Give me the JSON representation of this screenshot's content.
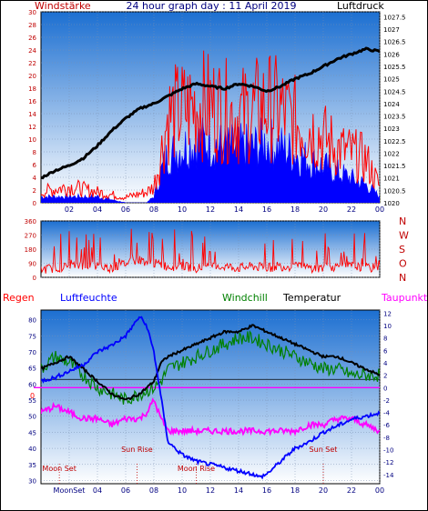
{
  "colors": {
    "wind": "#ff0000",
    "gust_bar": "#0000ff",
    "pressure": "#000000",
    "direction": "#ff0000",
    "humidity": "#0000ff",
    "windchill": "#008000",
    "temperature": "#000000",
    "dewpoint": "#ff00ff",
    "rain": "#ff0000",
    "sky_top": "#1c6fd1",
    "sky_bottom": "#ffffff",
    "axis_left": "#000080",
    "axis_right": "#000080"
  },
  "chart_data": [
    {
      "type": "line",
      "title": "24 hour graph day : 11 April 2019",
      "left_label": "Windstärke",
      "right_label": "Luftdruck",
      "x_ticks": [
        "02",
        "04",
        "06",
        "08",
        "10",
        "12",
        "14",
        "16",
        "18",
        "20",
        "22",
        "00"
      ],
      "left_ticks": [
        "0",
        "2",
        "4",
        "6",
        "8",
        "10",
        "12",
        "14",
        "16",
        "18",
        "20",
        "22",
        "24",
        "26",
        "28",
        "30"
      ],
      "right_ticks": [
        "1020",
        "1020.5",
        "1021",
        "1021.5",
        "1022",
        "1022.5",
        "1023",
        "1023.5",
        "1024",
        "1024.5",
        "1025",
        "1025.5",
        "1026",
        "1026.5",
        "1027",
        "1027.5"
      ],
      "ylim_left": [
        0,
        30
      ],
      "ylim_right": [
        1020,
        1027.7
      ],
      "series": [
        {
          "key": "pressure",
          "hours": [
            0,
            1,
            2,
            3,
            4,
            5,
            6,
            7,
            8,
            9,
            10,
            11,
            12,
            13,
            14,
            15,
            16,
            17,
            18,
            19,
            20,
            21,
            22,
            23,
            24
          ],
          "values": [
            1021,
            1021.3,
            1021.5,
            1021.8,
            1022.3,
            1022.9,
            1023.4,
            1023.8,
            1024.0,
            1024.3,
            1024.6,
            1024.8,
            1024.7,
            1024.6,
            1024.8,
            1024.7,
            1024.5,
            1024.7,
            1025.0,
            1025.2,
            1025.5,
            1025.8,
            1026.0,
            1026.2,
            1026.1
          ]
        },
        {
          "key": "wind",
          "hours": [
            0,
            2,
            4,
            6,
            7.5,
            8,
            8.5,
            9,
            10,
            11,
            12,
            13,
            14,
            15,
            16,
            17,
            18,
            19,
            20,
            21,
            22,
            23,
            24
          ],
          "values": [
            2,
            3,
            2,
            1,
            2,
            3,
            9,
            16,
            17,
            18,
            18,
            17,
            16,
            17,
            18,
            17,
            15,
            14,
            12,
            10,
            9,
            8,
            3
          ]
        },
        {
          "key": "gust",
          "hours": [
            0,
            2,
            4,
            6,
            7.5,
            8,
            8.5,
            9,
            10,
            11,
            12,
            13,
            14,
            15,
            16,
            17,
            18,
            19,
            20,
            21,
            22,
            23,
            24
          ],
          "values": [
            1,
            1,
            1,
            0,
            0,
            1,
            5,
            8,
            9,
            10,
            10,
            9,
            9,
            9,
            10,
            9,
            8,
            7,
            6,
            5,
            4,
            3,
            1
          ]
        }
      ]
    },
    {
      "type": "line",
      "title": "",
      "right_labels": [
        "N",
        "W",
        "S",
        "O",
        "N"
      ],
      "left_ticks": [
        "0",
        "90",
        "180",
        "270",
        "360"
      ],
      "ylim": [
        0,
        360
      ],
      "series": [
        {
          "key": "direction",
          "hours": [
            0,
            1,
            2,
            3,
            4,
            5,
            6,
            7,
            8,
            9,
            10,
            11,
            12,
            13,
            14,
            15,
            16,
            17,
            18,
            19,
            20,
            21,
            22,
            23,
            24
          ],
          "values": [
            50,
            60,
            70,
            80,
            70,
            60,
            90,
            110,
            90,
            70,
            70,
            60,
            60,
            70,
            60,
            70,
            60,
            70,
            70,
            60,
            60,
            70,
            70,
            60,
            60
          ]
        }
      ]
    },
    {
      "type": "line",
      "title": "",
      "labels": {
        "rain": "Regen",
        "humidity": "Luftfeuchte",
        "windchill": "Windchill",
        "temperature": "Temperatur",
        "dewpoint": "Taupunkt"
      },
      "x_ticks": [
        "MoonSet",
        "04",
        "06",
        "08",
        "10",
        "12",
        "14",
        "16",
        "18",
        "20",
        "22",
        "00"
      ],
      "left_ticks": [
        "30",
        "35",
        "40",
        "45",
        "50",
        "55",
        "60",
        "65",
        "70",
        "75",
        "80"
      ],
      "right_ticks": [
        "-14",
        "-12",
        "-10",
        "-8",
        "-6",
        "-4",
        "-2",
        "0",
        "2",
        "4",
        "6",
        "8",
        "10",
        "12"
      ],
      "rain_zero_label": "0",
      "ylim_left": [
        29,
        83
      ],
      "ylim_right": [
        -15.5,
        12.5
      ],
      "annotations": [
        {
          "text": "Moon Set",
          "hour": 1.3
        },
        {
          "text": "Sun Rise",
          "hour": 6.8
        },
        {
          "text": "Moon Rise",
          "hour": 11.0
        },
        {
          "text": "Sun Set",
          "hour": 20.0
        }
      ],
      "series": [
        {
          "key": "humidity",
          "hours": [
            0,
            1,
            2,
            3,
            4,
            5,
            6,
            6.5,
            7,
            7.5,
            8,
            8.5,
            9,
            10,
            11,
            12,
            13,
            14,
            15,
            15.5,
            16,
            17,
            18,
            19,
            20,
            21,
            22,
            23,
            24
          ],
          "values": [
            61,
            62,
            64,
            66,
            70,
            72,
            75,
            78,
            81,
            78,
            70,
            56,
            42,
            38,
            36,
            35,
            34,
            33,
            32,
            31,
            32,
            36,
            40,
            42,
            45,
            47,
            49,
            50,
            51
          ]
        },
        {
          "key": "windchill",
          "hours": [
            0,
            1,
            2,
            3,
            4,
            5,
            6,
            7,
            8,
            8.5,
            9,
            10,
            11,
            12,
            13,
            14,
            15,
            16,
            17,
            18,
            19,
            20,
            21,
            22,
            23,
            24
          ],
          "values": [
            3,
            5,
            4,
            2,
            0,
            -1,
            -2,
            -1,
            0,
            1,
            3,
            4,
            5,
            6,
            7,
            8,
            8,
            7,
            6,
            5,
            4,
            3,
            3,
            2,
            2,
            2
          ]
        },
        {
          "key": "temperature",
          "hours": [
            0,
            1,
            2,
            3,
            4,
            5,
            6,
            7,
            7.5,
            8,
            8.5,
            9,
            10,
            11,
            12,
            13,
            14,
            15,
            16,
            17,
            18,
            19,
            20,
            21,
            22,
            23,
            24
          ],
          "values": [
            3,
            4,
            5,
            3,
            1,
            -1,
            -2,
            -1,
            0,
            1,
            4,
            5,
            6,
            7,
            8,
            9,
            9,
            10,
            9,
            8,
            7,
            6,
            5,
            5,
            4,
            3,
            2
          ]
        },
        {
          "key": "dewpoint",
          "hours": [
            0,
            1,
            2,
            3,
            4,
            5,
            6,
            7,
            7.5,
            8,
            8.5,
            9,
            10,
            11,
            12,
            13,
            14,
            15,
            16,
            17,
            18,
            19,
            20,
            21,
            22,
            23,
            24
          ],
          "values": [
            -4,
            -3,
            -4,
            -5,
            -5,
            -6,
            -5,
            -5,
            -4,
            -2,
            -5,
            -7,
            -7,
            -7,
            -7,
            -7,
            -7,
            -7,
            -7,
            -7,
            -7,
            -6,
            -6,
            -5,
            -5,
            -6,
            -7
          ]
        }
      ]
    }
  ]
}
